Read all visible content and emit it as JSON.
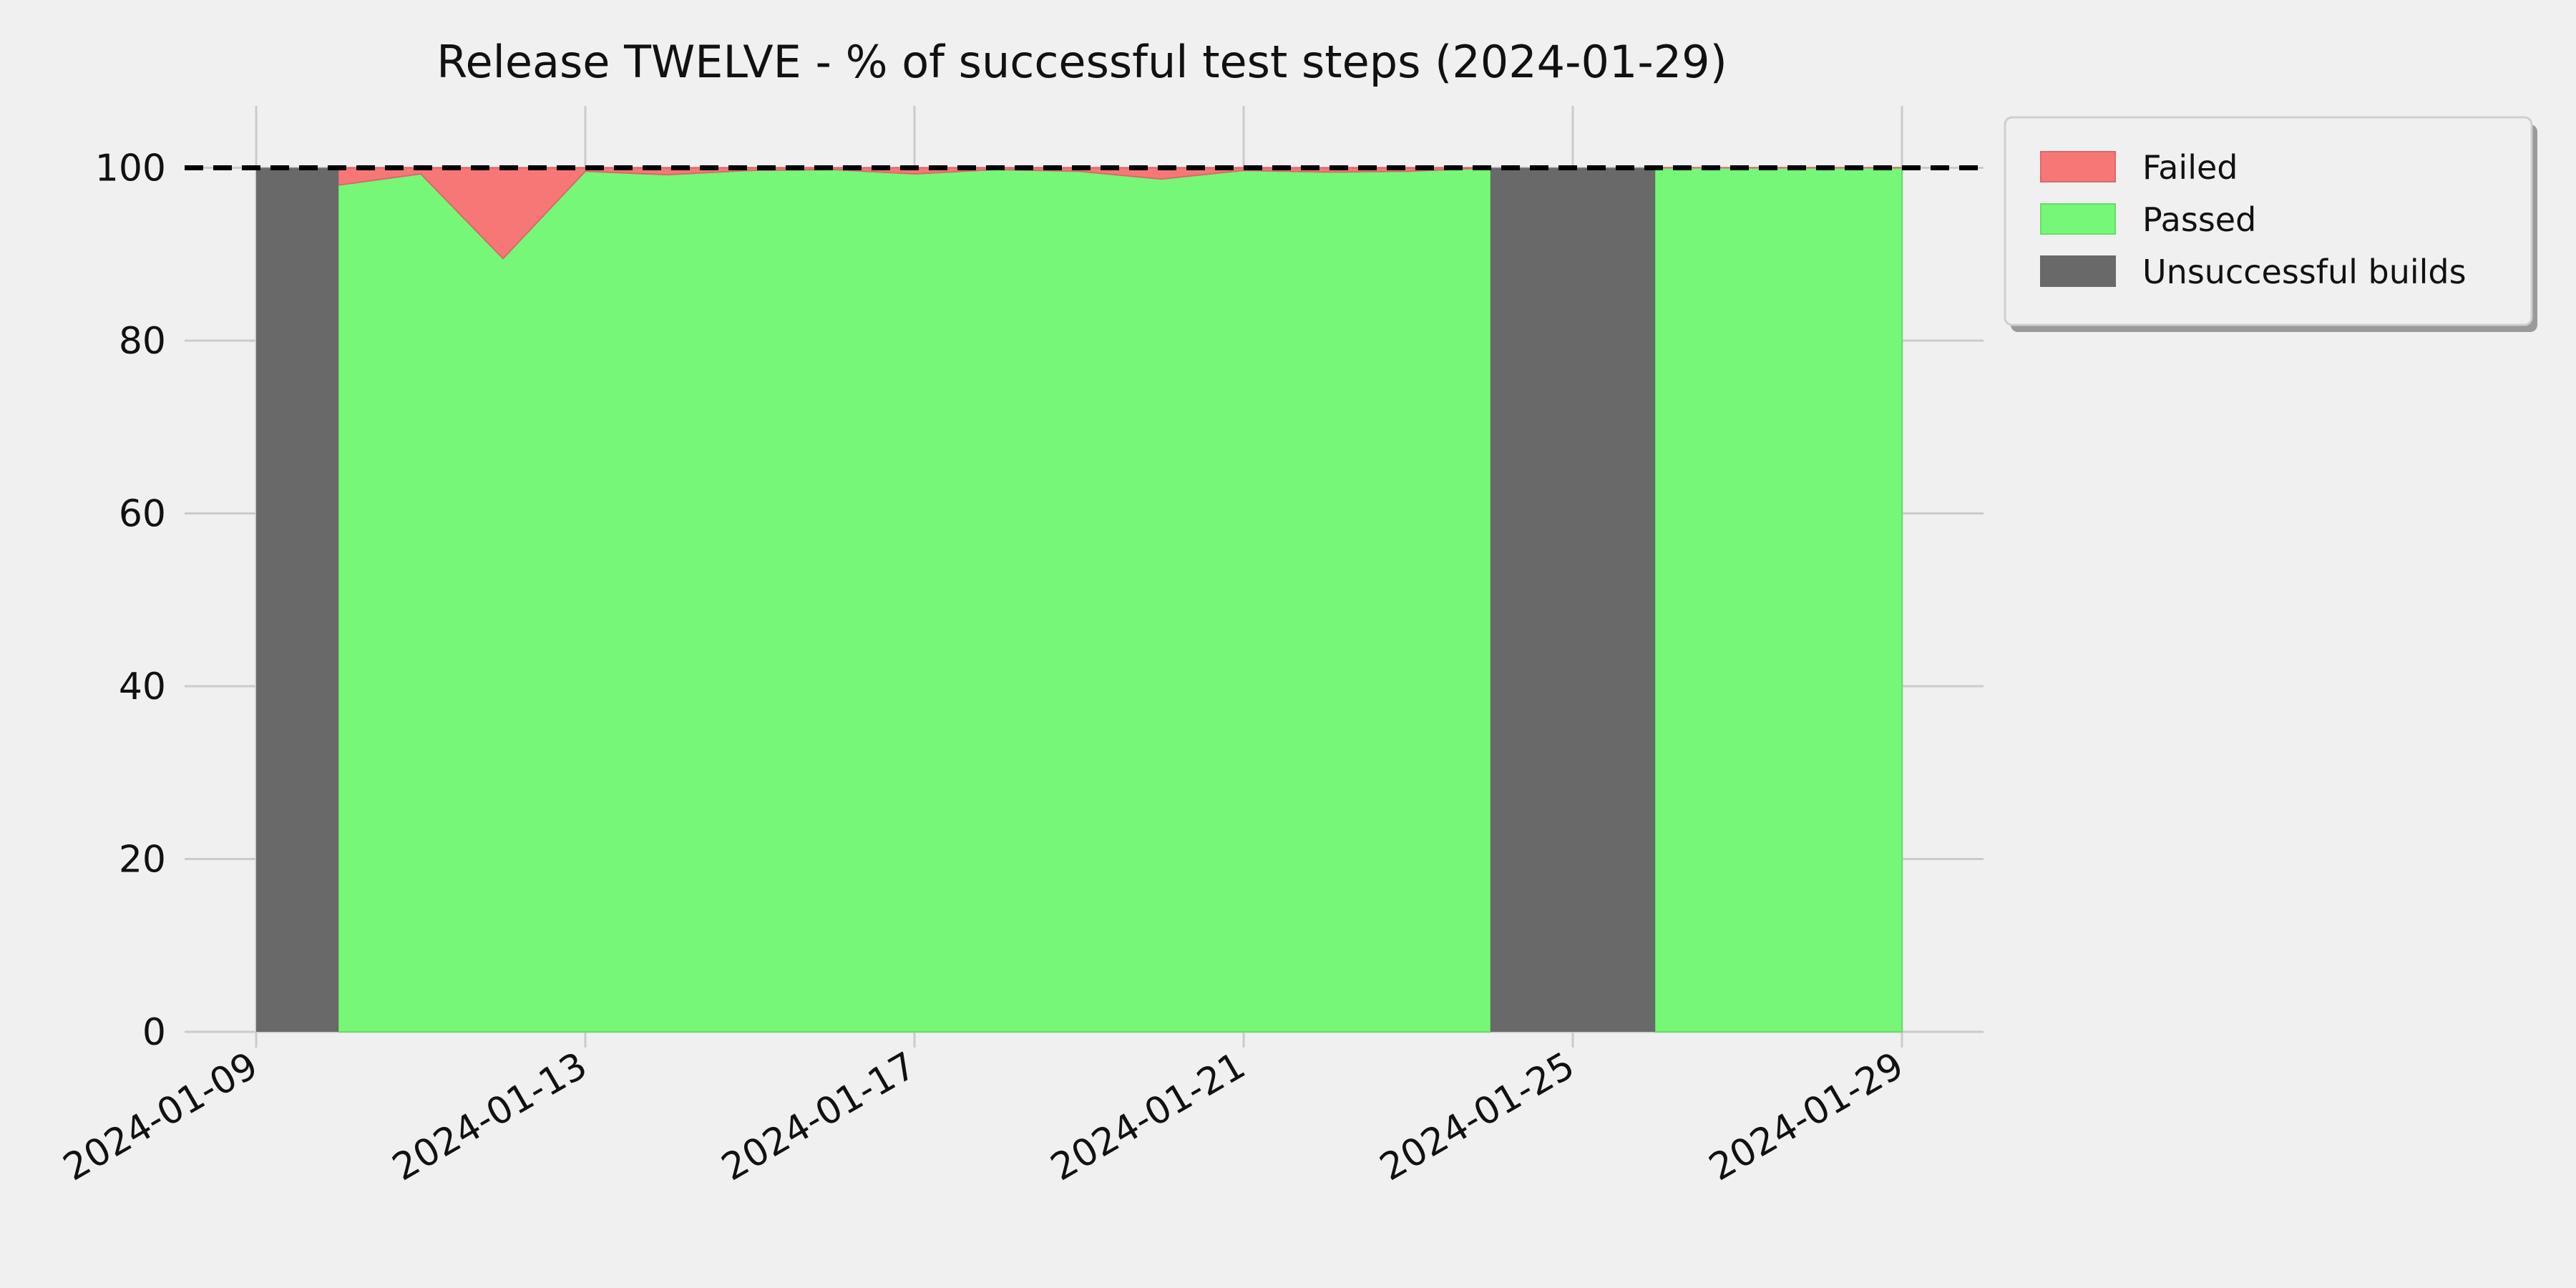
{
  "chart_data": {
    "type": "area",
    "title": "Release TWELVE - % of successful test steps (2024-01-29)",
    "xlabel": "",
    "ylabel": "",
    "ylim": [
      0,
      100
    ],
    "xlim": [
      "2024-01-09",
      "2024-01-29"
    ],
    "grid": true,
    "legend_position": "outside-top-right",
    "reference_line": {
      "y": 100,
      "style": "dashed",
      "color": "#000000"
    },
    "x_ticks": [
      "2024-01-09",
      "2024-01-13",
      "2024-01-17",
      "2024-01-21",
      "2024-01-25",
      "2024-01-29"
    ],
    "y_ticks": [
      0,
      20,
      40,
      60,
      80,
      100
    ],
    "x": [
      "2024-01-10",
      "2024-01-11",
      "2024-01-12",
      "2024-01-13",
      "2024-01-14",
      "2024-01-15",
      "2024-01-16",
      "2024-01-17",
      "2024-01-18",
      "2024-01-19",
      "2024-01-20",
      "2024-01-21",
      "2024-01-22",
      "2024-01-23",
      "2024-01-24",
      "2024-01-26",
      "2024-01-27",
      "2024-01-28",
      "2024-01-29"
    ],
    "series": [
      {
        "name": "Passed",
        "color": "#77f777",
        "values": [
          98,
          99.3,
          89.5,
          99.6,
          99.2,
          99.7,
          99.8,
          99.3,
          99.8,
          99.6,
          98.7,
          99.7,
          99.5,
          99.6,
          100,
          100,
          100,
          100,
          100
        ]
      },
      {
        "name": "Failed",
        "color": "#f77777",
        "values": [
          2,
          0.7,
          10.5,
          0.4,
          0.8,
          0.3,
          0.2,
          0.7,
          0.2,
          0.4,
          1.3,
          0.3,
          0.5,
          0.4,
          0,
          0,
          0,
          0,
          0
        ]
      }
    ],
    "unsuccessful_builds": {
      "name": "Unsuccessful builds",
      "color": "#696969",
      "ranges": [
        [
          "2024-01-09",
          "2024-01-10"
        ],
        [
          "2024-01-24",
          "2024-01-26"
        ]
      ],
      "value": 100
    }
  }
}
